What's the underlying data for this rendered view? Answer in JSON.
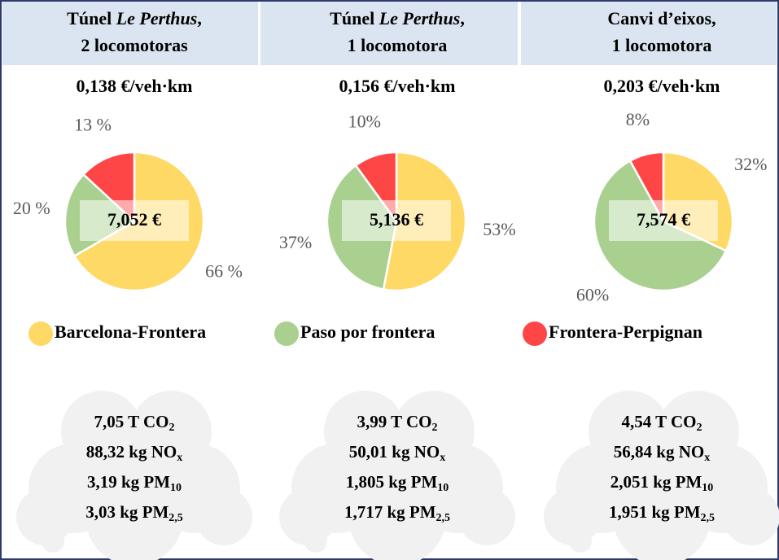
{
  "columns": [
    {
      "title": {
        "pre": "Túnel ",
        "em": "Le Perthus",
        "post": ",",
        "line2": "2 locomotoras"
      },
      "cost": "0,138 €/veh·km",
      "emissions": [
        {
          "text": "7,05 T CO",
          "sub": "2"
        },
        {
          "text": "88,32 kg NO",
          "sub": "x"
        },
        {
          "text": "3,19  kg PM",
          "sub": "10"
        },
        {
          "text": "3,03 kg PM",
          "sub": "2,5"
        }
      ]
    },
    {
      "title": {
        "pre": "Túnel ",
        "em": "Le Perthus",
        "post": ",",
        "line2": "1 locomotora"
      },
      "cost": "0,156 €/veh·km",
      "emissions": [
        {
          "text": "3,99 T CO",
          "sub": "2"
        },
        {
          "text": "50,01 kg NO",
          "sub": "x"
        },
        {
          "text": "1,805 kg PM",
          "sub": "10"
        },
        {
          "text": "1,717 kg PM",
          "sub": "2,5"
        }
      ]
    },
    {
      "title": {
        "pre": "Canvi d’eixos,",
        "em": "",
        "post": "",
        "line2": "1 locomotora"
      },
      "cost": "0,203 €/veh·km",
      "emissions": [
        {
          "text": "4,54 T CO",
          "sub": "2"
        },
        {
          "text": "56,84 kg NO",
          "sub": "x"
        },
        {
          "text": "2,051 kg PM",
          "sub": "10"
        },
        {
          "text": "1,951 kg PM",
          "sub": "2,5"
        }
      ]
    }
  ],
  "legend": {
    "categories": [
      "Barcelona-Frontera",
      "Paso por frontera",
      "Frontera-Perpignan"
    ],
    "colors": [
      "#ffd966",
      "#a9d08e",
      "#ff4646"
    ]
  },
  "chart_data": [
    {
      "type": "pie",
      "values": [
        66,
        20,
        13
      ],
      "value_labels": [
        "66 %",
        "20 %",
        "13 %"
      ],
      "center_label": "7,052 €"
    },
    {
      "type": "pie",
      "values": [
        53,
        37,
        10
      ],
      "value_labels": [
        "53%",
        "37%",
        "10%"
      ],
      "center_label": "5,136 €"
    },
    {
      "type": "pie",
      "values": [
        32,
        60,
        8
      ],
      "value_labels": [
        "32%",
        "60%",
        "8%"
      ],
      "center_label": "7,574 €"
    }
  ]
}
